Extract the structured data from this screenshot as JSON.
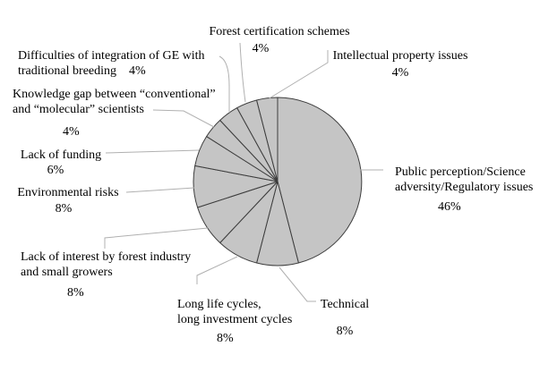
{
  "chart_data": {
    "type": "pie",
    "title": "",
    "start_angle_deg": 0,
    "direction": "clockwise",
    "legend": "none",
    "slices": [
      {
        "label": "Public perception/Science adversity/Regulatory issues",
        "label_lines": [
          "Public perception/Science",
          "adversity/Regulatory issues"
        ],
        "value": 46,
        "pct": "46%"
      },
      {
        "label": "Technical",
        "label_lines": [
          "Technical"
        ],
        "value": 8,
        "pct": "8%"
      },
      {
        "label": "Long life cycles, long investment cycles",
        "label_lines": [
          "Long life cycles,",
          "long investment cycles"
        ],
        "value": 8,
        "pct": "8%"
      },
      {
        "label": "Lack of interest by forest industry and small growers",
        "label_lines": [
          "Lack of interest by forest industry",
          "and small growers"
        ],
        "value": 8,
        "pct": "8%"
      },
      {
        "label": "Environmental risks",
        "label_lines": [
          "Environmental risks"
        ],
        "value": 8,
        "pct": "8%"
      },
      {
        "label": "Lack of funding",
        "label_lines": [
          "Lack of funding"
        ],
        "value": 6,
        "pct": "6%"
      },
      {
        "label": "Knowledge gap between “conventional” and “molecular” scientists",
        "label_lines": [
          "Knowledge gap between “conventional”",
          "and “molecular” scientists"
        ],
        "value": 4,
        "pct": "4%"
      },
      {
        "label": "Difficulties of integration of GE with traditional breeding",
        "label_lines": [
          "Difficulties of integration of GE with",
          "traditional breeding"
        ],
        "value": 4,
        "pct": "4%"
      },
      {
        "label": "Forest certification schemes",
        "label_lines": [
          "Forest certification schemes"
        ],
        "value": 4,
        "pct": "4%"
      },
      {
        "label": "Intellectual property issues",
        "label_lines": [
          "Intellectual property issues"
        ],
        "value": 4,
        "pct": "4%"
      }
    ],
    "colors": {
      "slice_fill": "#c5c5c5",
      "slice_stroke": "#3d3d3d",
      "leader_line": "#b0b0b0",
      "text": "#000000",
      "background": "#ffffff"
    }
  }
}
